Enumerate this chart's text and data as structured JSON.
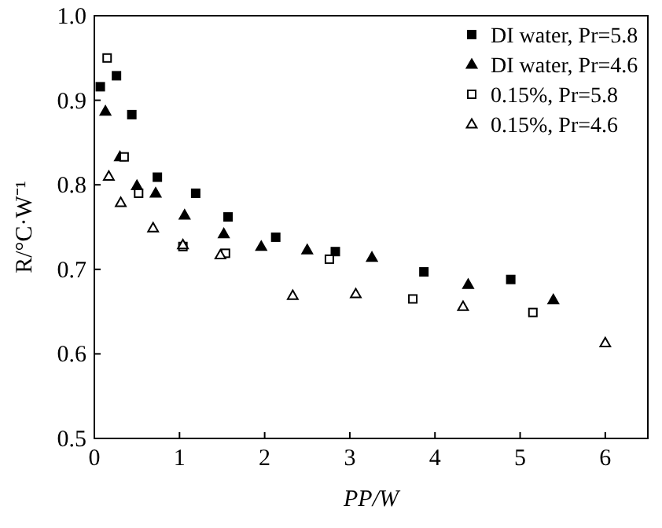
{
  "chart_data": {
    "type": "scatter",
    "xlabel": "PP/W",
    "ylabel": "R/°C·W⁻¹",
    "xlim": [
      0,
      6.5
    ],
    "ylim": [
      0.5,
      1.0
    ],
    "xticks": [
      0,
      1,
      2,
      3,
      4,
      5,
      6
    ],
    "yticks": [
      {
        "value": 0.5,
        "label": "0.5"
      },
      {
        "value": 0.6,
        "label": "0.6"
      },
      {
        "value": 0.7,
        "label": "0.7"
      },
      {
        "value": 0.8,
        "label": "0.8"
      },
      {
        "value": 0.9,
        "label": "0.9"
      },
      {
        "value": 1.0,
        "label": "1.0"
      }
    ],
    "grid": false,
    "legend": "top right",
    "series": [
      {
        "name": "DI water, Pr=5.8",
        "color": "#000000",
        "marker": "square",
        "x": [
          0.07,
          0.26,
          0.44,
          0.74,
          1.19,
          1.57,
          2.13,
          2.83,
          3.87,
          4.89
        ],
        "values": [
          0.916,
          0.929,
          0.883,
          0.809,
          0.79,
          0.762,
          0.738,
          0.721,
          0.697,
          0.688
        ]
      },
      {
        "name": "DI water, Pr=4.6",
        "color": "#000000",
        "marker": "triangle",
        "x": [
          0.13,
          0.3,
          0.5,
          0.72,
          1.06,
          1.52,
          1.96,
          2.5,
          3.26,
          4.39,
          5.39
        ],
        "values": [
          0.887,
          0.833,
          0.799,
          0.79,
          0.764,
          0.742,
          0.727,
          0.723,
          0.714,
          0.682,
          0.664
        ]
      },
      {
        "name": "0.15%, Pr=5.8",
        "color": "#ffffff",
        "marker": "square",
        "x": [
          0.15,
          0.35,
          0.52,
          1.04,
          1.54,
          2.76,
          3.74,
          5.15
        ],
        "values": [
          0.95,
          0.833,
          0.79,
          0.727,
          0.719,
          0.712,
          0.665,
          0.649
        ]
      },
      {
        "name": "0.15%, Pr=4.6",
        "color": "#ffffff",
        "marker": "triangle",
        "x": [
          0.17,
          0.31,
          0.69,
          1.04,
          1.48,
          2.33,
          3.07,
          4.33,
          6.0
        ],
        "values": [
          0.81,
          0.779,
          0.749,
          0.729,
          0.717,
          0.669,
          0.671,
          0.656,
          0.613
        ]
      }
    ]
  }
}
